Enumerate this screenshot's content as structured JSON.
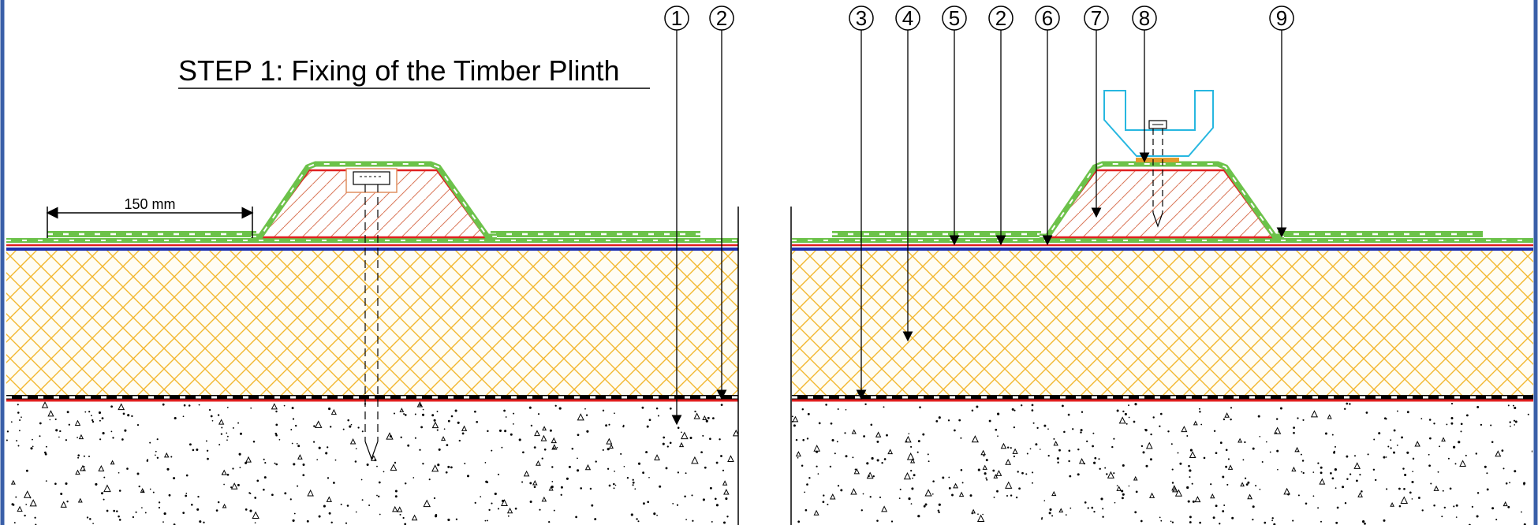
{
  "title": "STEP 1: Fixing of the Timber Plinth",
  "dimension_label": "150 mm",
  "callouts_left": [
    "1",
    "2"
  ],
  "callouts_right": [
    "3",
    "4",
    "5",
    "2",
    "6",
    "7",
    "8",
    "9"
  ],
  "colors": {
    "frame": "#3a5fa8",
    "insulation_hatch": "#f2b72f",
    "membrane_green": "#6cc24a",
    "membrane_red": "#e02020",
    "membrane_blue": "#1c2fb0",
    "timber_hatch": "#d9785a",
    "bracket_cyan": "#27b7e0",
    "washer_orange": "#e39b2a",
    "concrete": "#000000"
  },
  "icons": [
    "screw-icon",
    "bracket-icon",
    "arrow-icon"
  ]
}
